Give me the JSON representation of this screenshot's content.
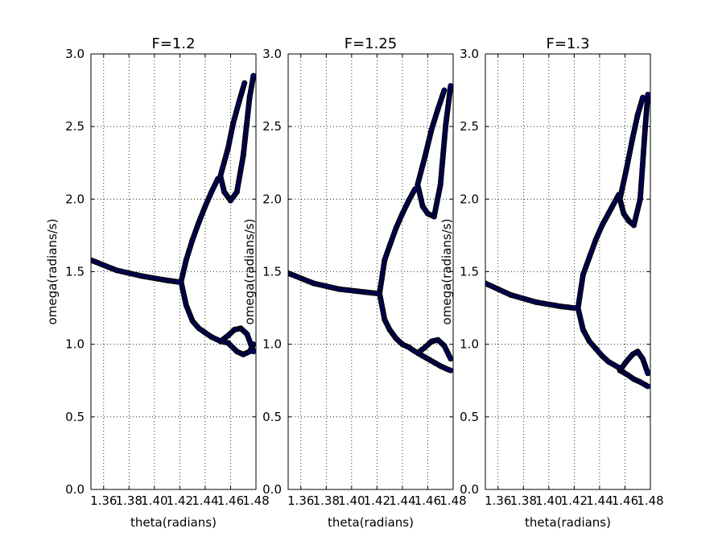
{
  "chart_data": [
    {
      "type": "scatter",
      "title": "F=1.2",
      "xlabel": "theta(radians)",
      "ylabel": "omega(radians/s)",
      "xlim": [
        1.35,
        1.48
      ],
      "ylim": [
        0.0,
        3.0
      ],
      "xticks": [
        "1.36",
        "1.38",
        "1.40",
        "1.42",
        "1.44",
        "1.46",
        "1.48"
      ],
      "yticks": [
        "0.0",
        "0.5",
        "1.0",
        "1.5",
        "2.0",
        "2.5",
        "3.0"
      ],
      "grid": true,
      "marker_color": "#000080",
      "branches": [
        {
          "x": [
            1.35,
            1.37,
            1.39,
            1.41,
            1.4185
          ],
          "y": [
            1.58,
            1.51,
            1.47,
            1.44,
            1.43
          ]
        },
        {
          "x": [
            1.421,
            1.425,
            1.43,
            1.435,
            1.44,
            1.445,
            1.45
          ],
          "y": [
            1.43,
            1.58,
            1.72,
            1.84,
            1.95,
            2.05,
            2.14
          ]
        },
        {
          "x": [
            1.421,
            1.425,
            1.43,
            1.435,
            1.44,
            1.445,
            1.45
          ],
          "y": [
            1.43,
            1.27,
            1.16,
            1.11,
            1.08,
            1.05,
            1.03
          ]
        },
        {
          "x": [
            1.452,
            1.455,
            1.46,
            1.465,
            1.47,
            1.475,
            1.478
          ],
          "y": [
            2.16,
            2.05,
            1.99,
            2.05,
            2.3,
            2.7,
            2.85
          ]
        },
        {
          "x": [
            1.452,
            1.458,
            1.462,
            1.467,
            1.471
          ],
          "y": [
            2.16,
            2.35,
            2.52,
            2.68,
            2.8
          ]
        },
        {
          "x": [
            1.452,
            1.458,
            1.465,
            1.47,
            1.475,
            1.478
          ],
          "y": [
            1.02,
            1.01,
            0.95,
            0.93,
            0.95,
            1.0
          ]
        },
        {
          "x": [
            1.452,
            1.458,
            1.463,
            1.468,
            1.473,
            1.478
          ],
          "y": [
            1.02,
            1.06,
            1.1,
            1.11,
            1.07,
            0.95
          ]
        }
      ]
    },
    {
      "type": "scatter",
      "title": "F=1.25",
      "xlabel": "theta(radians)",
      "ylabel": "omega(radians/s)",
      "xlim": [
        1.35,
        1.48
      ],
      "ylim": [
        0.0,
        3.0
      ],
      "xticks": [
        "1.36",
        "1.38",
        "1.40",
        "1.42",
        "1.44",
        "1.46",
        "1.48"
      ],
      "yticks": [
        "0.0",
        "0.5",
        "1.0",
        "1.5",
        "2.0",
        "2.5",
        "3.0"
      ],
      "grid": true,
      "marker_color": "#000080",
      "branches": [
        {
          "x": [
            1.35,
            1.37,
            1.39,
            1.41,
            1.42
          ],
          "y": [
            1.49,
            1.42,
            1.38,
            1.36,
            1.35
          ]
        },
        {
          "x": [
            1.422,
            1.426,
            1.43,
            1.435,
            1.44,
            1.445,
            1.45
          ],
          "y": [
            1.35,
            1.58,
            1.68,
            1.8,
            1.9,
            1.99,
            2.07
          ]
        },
        {
          "x": [
            1.422,
            1.426,
            1.43,
            1.435,
            1.44,
            1.445,
            1.45
          ],
          "y": [
            1.35,
            1.17,
            1.1,
            1.04,
            1.0,
            0.98,
            0.95
          ]
        },
        {
          "x": [
            1.452,
            1.456,
            1.46,
            1.465,
            1.47,
            1.474,
            1.478
          ],
          "y": [
            2.1,
            1.95,
            1.9,
            1.88,
            2.1,
            2.5,
            2.78
          ]
        },
        {
          "x": [
            1.452,
            1.458,
            1.463,
            1.468,
            1.473
          ],
          "y": [
            2.1,
            2.3,
            2.48,
            2.62,
            2.75
          ]
        },
        {
          "x": [
            1.452,
            1.46,
            1.466,
            1.47,
            1.475,
            1.478
          ],
          "y": [
            0.94,
            0.9,
            0.87,
            0.85,
            0.83,
            0.82
          ]
        },
        {
          "x": [
            1.452,
            1.458,
            1.463,
            1.468,
            1.473,
            1.478
          ],
          "y": [
            0.94,
            0.98,
            1.02,
            1.03,
            0.99,
            0.9
          ]
        }
      ]
    },
    {
      "type": "scatter",
      "title": "F=1.3",
      "xlabel": "theta(radians)",
      "ylabel": "omega(radians/s)",
      "xlim": [
        1.35,
        1.48
      ],
      "ylim": [
        0.0,
        3.0
      ],
      "xticks": [
        "1.36",
        "1.38",
        "1.40",
        "1.42",
        "1.44",
        "1.46",
        "1.48"
      ],
      "yticks": [
        "0.0",
        "0.5",
        "1.0",
        "1.5",
        "2.0",
        "2.5",
        "3.0"
      ],
      "grid": true,
      "marker_color": "#000080",
      "branches": [
        {
          "x": [
            1.35,
            1.37,
            1.39,
            1.41,
            1.42
          ],
          "y": [
            1.42,
            1.34,
            1.29,
            1.26,
            1.25
          ]
        },
        {
          "x": [
            1.423,
            1.427,
            1.432,
            1.437,
            1.442,
            1.447,
            1.455
          ],
          "y": [
            1.25,
            1.48,
            1.6,
            1.72,
            1.82,
            1.9,
            2.03
          ]
        },
        {
          "x": [
            1.423,
            1.427,
            1.432,
            1.437,
            1.442,
            1.447,
            1.455
          ],
          "y": [
            1.25,
            1.1,
            1.02,
            0.97,
            0.92,
            0.88,
            0.84
          ]
        },
        {
          "x": [
            1.456,
            1.459,
            1.463,
            1.467,
            1.472,
            1.476,
            1.478
          ],
          "y": [
            2.0,
            1.9,
            1.85,
            1.82,
            2.0,
            2.5,
            2.72
          ]
        },
        {
          "x": [
            1.456,
            1.461,
            1.466,
            1.47,
            1.474
          ],
          "y": [
            2.0,
            2.2,
            2.42,
            2.58,
            2.7
          ]
        },
        {
          "x": [
            1.456,
            1.462,
            1.467,
            1.472,
            1.476,
            1.478
          ],
          "y": [
            0.82,
            0.79,
            0.76,
            0.74,
            0.72,
            0.71
          ]
        },
        {
          "x": [
            1.456,
            1.461,
            1.466,
            1.47,
            1.474,
            1.478
          ],
          "y": [
            0.82,
            0.88,
            0.93,
            0.95,
            0.9,
            0.8
          ]
        }
      ]
    }
  ]
}
